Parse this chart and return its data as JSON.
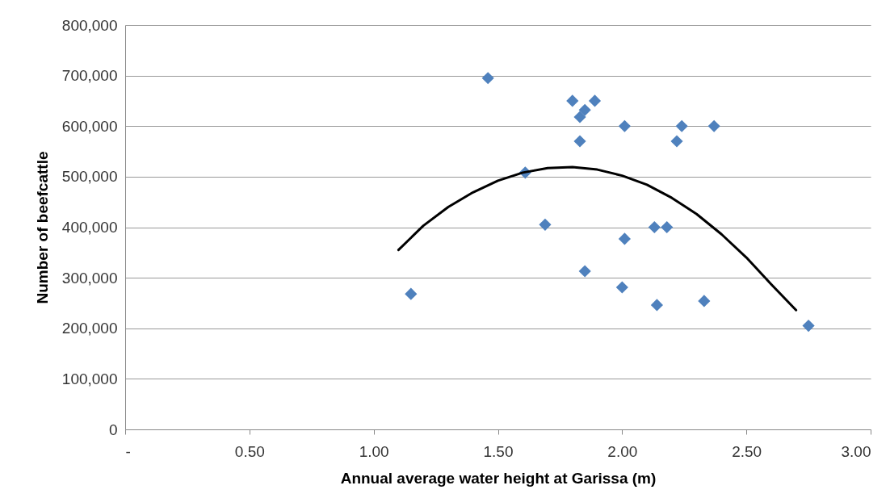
{
  "chart_data": {
    "type": "scatter",
    "xlabel": "Annual average water height at Garissa  (m)",
    "ylabel": "Number of beefcattle",
    "xlim": [
      0,
      3
    ],
    "ylim": [
      0,
      800000
    ],
    "xticks": [
      {
        "value": 0,
        "label": "-"
      },
      {
        "value": 0.5,
        "label": "0.50"
      },
      {
        "value": 1,
        "label": "1.00"
      },
      {
        "value": 1.5,
        "label": "1.50"
      },
      {
        "value": 2,
        "label": "2.00"
      },
      {
        "value": 2.5,
        "label": "2.50"
      },
      {
        "value": 3,
        "label": "3.00"
      }
    ],
    "yticks": [
      0,
      {
        "value": 100000,
        "label": "100,000"
      },
      {
        "value": 200000,
        "label": "200,000"
      },
      {
        "value": 300000,
        "label": "300,000"
      },
      {
        "value": 400000,
        "label": "400,000"
      },
      {
        "value": 500000,
        "label": "500,000"
      },
      {
        "value": 600000,
        "label": "600,000"
      },
      {
        "value": 700000,
        "label": "700,000"
      },
      {
        "value": 800000,
        "label": "800,000"
      }
    ],
    "grid": "y",
    "series": [
      {
        "color": "#4f81bd",
        "marker": "diamond",
        "x": [
          1.46,
          1.61,
          1.69,
          1.15,
          1.8,
          1.89,
          1.85,
          1.83,
          1.83,
          1.85,
          2.01,
          2.01,
          2.0,
          2.13,
          2.18,
          2.14,
          2.22,
          2.24,
          2.37,
          2.33,
          2.75
        ],
        "values": [
          695000,
          508000,
          405000,
          268000,
          650000,
          650000,
          632000,
          618000,
          570000,
          313000,
          600000,
          377000,
          281000,
          400000,
          400000,
          246000,
          570000,
          600000,
          600000,
          254000,
          205000
        ]
      },
      {
        "type": "line",
        "color": "#000000",
        "x": [
          1.1,
          1.2,
          1.3,
          1.4,
          1.5,
          1.6,
          1.7,
          1.8,
          1.9,
          2.0,
          2.1,
          2.2,
          2.3,
          2.4,
          2.5,
          2.6,
          2.7
        ],
        "values": [
          355000,
          403000,
          440000,
          469000,
          492000,
          508000,
          517000,
          519000,
          514000,
          502000,
          484000,
          458000,
          426000,
          386000,
          340000,
          287000,
          236000
        ]
      }
    ]
  }
}
